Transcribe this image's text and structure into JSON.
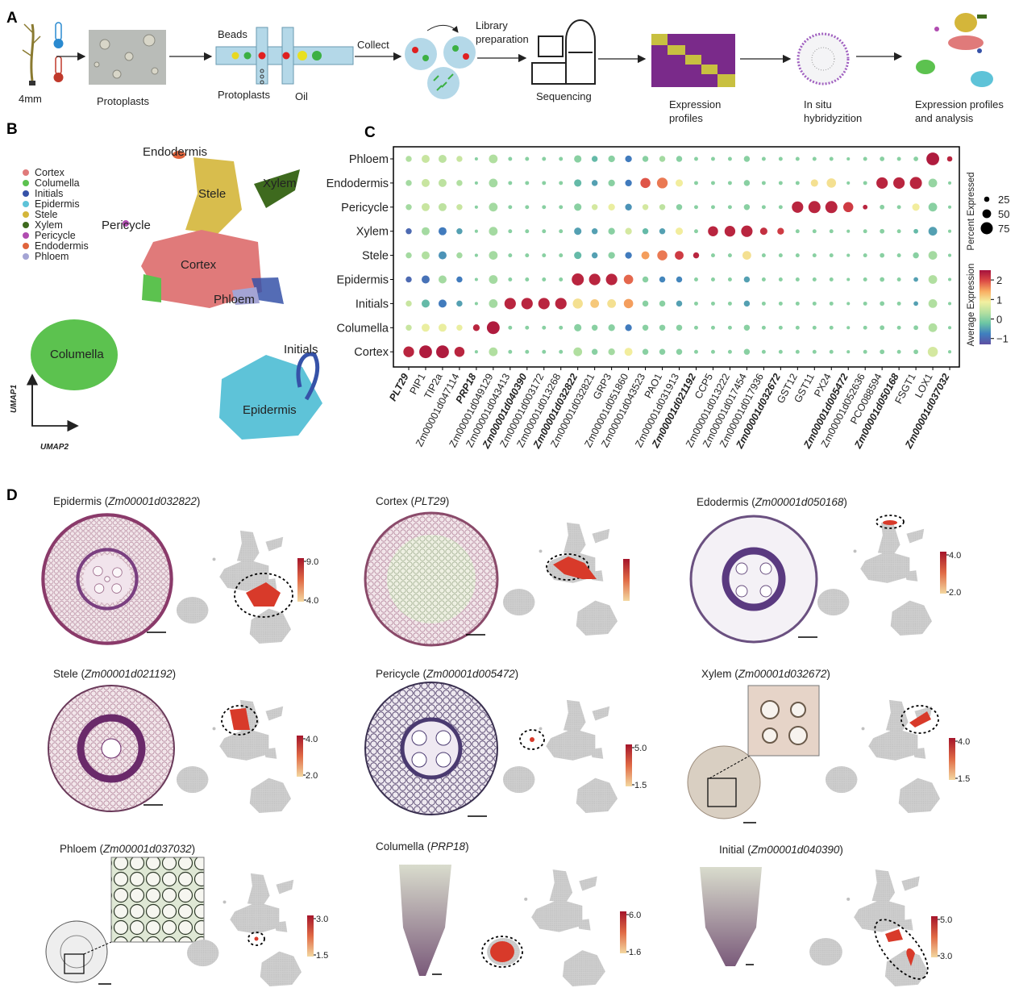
{
  "panel_labels": [
    "A",
    "B",
    "C",
    "D"
  ],
  "workflow": {
    "root_length": "4mm",
    "protoplasts": "Protoplasts",
    "beads": "Beads",
    "protoplasts_in": "Protoplasts",
    "oil": "Oil",
    "collect": "Collect",
    "library": [
      "Library",
      "preparation"
    ],
    "sequencing": "Sequencing",
    "expression": [
      "Expression",
      "profiles"
    ],
    "in_situ": [
      "In situ",
      "hybridyzition"
    ],
    "analysis": [
      "Expression profiles",
      "and analysis"
    ]
  },
  "umap": {
    "legend": [
      {
        "name": "Cortex",
        "color": "#e07a7a"
      },
      {
        "name": "Columella",
        "color": "#5cc24f"
      },
      {
        "name": "Initials",
        "color": "#3652a8"
      },
      {
        "name": "Epidermis",
        "color": "#5ec3d8"
      },
      {
        "name": "Stele",
        "color": "#d4b63a"
      },
      {
        "name": "Xylem",
        "color": "#3e6a1e"
      },
      {
        "name": "Pericycle",
        "color": "#b04cb0"
      },
      {
        "name": "Endodermis",
        "color": "#e0643c"
      },
      {
        "name": "Phloem",
        "color": "#a4a4d4"
      }
    ],
    "y_axis": "UMAP1",
    "x_axis": "UMAP2"
  },
  "chart_data": {
    "type": "dotplot",
    "rows": [
      "Phloem",
      "Endodermis",
      "Pericycle",
      "Xylem",
      "Stele",
      "Epidermis",
      "Initials",
      "Columella",
      "Cortex"
    ],
    "genes": [
      "PLT29",
      "PIP1",
      "TIP2a",
      "Zm00001d047114",
      "PRP18",
      "Zm00001d049129",
      "Zm00001d043413",
      "Zm00001d040390",
      "Zm00001d003172",
      "Zm00001d013268",
      "Zm00001d032822",
      "Zm00001d032821",
      "GRP3",
      "Zm00001d051860",
      "Zm00001d043523",
      "PAO1",
      "Zm00001d031913",
      "Zm00001d021192",
      "CCP5",
      "Zm00001d013222",
      "Zm00001d017454",
      "Zm00001d017936",
      "Zm00001d032672",
      "GST12",
      "GST11",
      "PX24",
      "Zm00001d005472",
      "Zm00001d052636",
      "PCO088594",
      "Zm00001d050168",
      "FSGT1",
      "LOX1",
      "Zm00001d037032"
    ],
    "bold": [
      true,
      false,
      false,
      false,
      true,
      false,
      false,
      true,
      false,
      false,
      true,
      false,
      false,
      false,
      false,
      false,
      false,
      true,
      false,
      false,
      false,
      false,
      true,
      false,
      false,
      false,
      true,
      false,
      false,
      true,
      false,
      false,
      true
    ],
    "expression": [
      [
        0.3,
        0.5,
        0.4,
        0.5,
        0,
        0.3,
        0,
        0,
        0,
        0,
        0,
        -0.3,
        0,
        -0.8,
        0,
        0.2,
        0,
        0,
        0,
        0,
        0,
        0,
        0,
        0,
        0,
        0,
        0,
        0,
        0,
        0,
        0,
        2.4,
        2.3
      ],
      [
        0.2,
        0.5,
        0.4,
        0.3,
        0,
        0.2,
        0,
        0,
        0,
        0,
        -0.3,
        -0.5,
        0,
        -0.8,
        1.9,
        1.7,
        0.9,
        0,
        0,
        0,
        0,
        0,
        0,
        0,
        1,
        1,
        0,
        0,
        2.3,
        2.3,
        2.3,
        0.1,
        0
      ],
      [
        0.2,
        0.5,
        0.4,
        0.5,
        0,
        0.2,
        0,
        0,
        0,
        0,
        0,
        0.6,
        0.8,
        -0.6,
        0.6,
        0.4,
        0,
        0,
        0,
        0,
        0,
        0,
        0,
        2.3,
        2.3,
        2.3,
        2.1,
        2.3,
        0,
        0,
        0.9,
        0,
        0
      ],
      [
        -1,
        0.2,
        -0.8,
        -0.5,
        0,
        0.2,
        0,
        0,
        0,
        0,
        -0.5,
        -0.5,
        0,
        0.6,
        -0.3,
        -0.5,
        0.9,
        0,
        2.3,
        2.3,
        2.3,
        2.2,
        2.1,
        0,
        0,
        0,
        0,
        0,
        0,
        0,
        -0.3,
        -0.5,
        0
      ],
      [
        0.2,
        0.3,
        -0.6,
        0.2,
        0,
        0.2,
        0,
        0,
        0,
        0,
        -0.3,
        -0.5,
        0,
        -0.8,
        1.5,
        1.7,
        2.1,
        2.3,
        0,
        0,
        1,
        0,
        0,
        0,
        0,
        0,
        0,
        0,
        0,
        0,
        0,
        0.2,
        0
      ],
      [
        -1,
        -0.9,
        0.2,
        -0.8,
        0,
        0.2,
        0,
        0,
        0,
        0,
        2.3,
        2.3,
        2.3,
        1.8,
        0,
        -0.7,
        -0.7,
        0,
        0,
        0,
        -0.5,
        0,
        0,
        0,
        0,
        0,
        0,
        0,
        0,
        0,
        -0.5,
        0.3,
        0
      ],
      [
        0.5,
        -0.3,
        -0.8,
        -0.5,
        0,
        0.2,
        2.3,
        2.3,
        2.3,
        2.3,
        1,
        1.2,
        1,
        1.5,
        0,
        0,
        -0.5,
        0,
        0,
        0,
        -0.5,
        0,
        0,
        0,
        0,
        0,
        0,
        0,
        0,
        0,
        -0.5,
        0.3,
        0
      ],
      [
        0.5,
        0.8,
        0.8,
        0.8,
        2.3,
        2.4,
        0,
        0,
        0,
        0,
        0,
        0,
        0,
        -0.8,
        0,
        0,
        0,
        0,
        0,
        0,
        0,
        0,
        0,
        0,
        0,
        0,
        0,
        0,
        0,
        0,
        0,
        0.3,
        0
      ],
      [
        2.3,
        2.4,
        2.4,
        2.3,
        0,
        0.3,
        0,
        0,
        0,
        0,
        0.3,
        0,
        0.2,
        0.9,
        0,
        0,
        0,
        0,
        0,
        0,
        0,
        0,
        0,
        0,
        0,
        0,
        0,
        0,
        0,
        0,
        0,
        0.6,
        0
      ]
    ],
    "percent": [
      [
        30,
        45,
        45,
        30,
        10,
        50,
        15,
        15,
        15,
        15,
        40,
        30,
        35,
        35,
        30,
        30,
        30,
        15,
        15,
        15,
        30,
        15,
        15,
        15,
        15,
        15,
        10,
        15,
        20,
        15,
        20,
        80,
        25
      ],
      [
        30,
        45,
        45,
        30,
        10,
        50,
        15,
        15,
        15,
        15,
        40,
        30,
        35,
        35,
        60,
        65,
        40,
        15,
        15,
        15,
        30,
        15,
        15,
        15,
        40,
        55,
        10,
        15,
        70,
        70,
        75,
        50,
        10
      ],
      [
        30,
        45,
        45,
        30,
        10,
        50,
        15,
        15,
        15,
        15,
        40,
        30,
        35,
        35,
        30,
        30,
        30,
        15,
        15,
        15,
        30,
        15,
        15,
        70,
        75,
        75,
        60,
        20,
        20,
        15,
        40,
        50,
        10
      ],
      [
        30,
        45,
        45,
        30,
        10,
        50,
        15,
        15,
        15,
        15,
        40,
        30,
        35,
        35,
        30,
        30,
        40,
        15,
        60,
        65,
        70,
        40,
        35,
        15,
        15,
        15,
        10,
        15,
        20,
        15,
        20,
        50,
        10
      ],
      [
        30,
        45,
        45,
        30,
        10,
        50,
        15,
        15,
        15,
        15,
        40,
        30,
        35,
        35,
        45,
        60,
        50,
        30,
        15,
        15,
        50,
        15,
        15,
        15,
        15,
        15,
        10,
        15,
        20,
        15,
        30,
        50,
        10
      ],
      [
        30,
        45,
        45,
        30,
        10,
        50,
        15,
        15,
        15,
        15,
        75,
        70,
        70,
        55,
        30,
        30,
        30,
        15,
        15,
        15,
        30,
        15,
        15,
        15,
        15,
        15,
        10,
        15,
        20,
        15,
        20,
        50,
        10
      ],
      [
        30,
        45,
        45,
        30,
        10,
        50,
        70,
        70,
        70,
        70,
        60,
        50,
        50,
        55,
        30,
        30,
        30,
        15,
        15,
        15,
        30,
        15,
        15,
        15,
        15,
        15,
        10,
        15,
        20,
        15,
        20,
        50,
        10
      ],
      [
        30,
        45,
        45,
        30,
        35,
        80,
        15,
        15,
        15,
        15,
        40,
        30,
        35,
        35,
        30,
        30,
        30,
        15,
        15,
        15,
        30,
        15,
        15,
        15,
        15,
        15,
        10,
        15,
        20,
        15,
        20,
        50,
        10
      ],
      [
        65,
        80,
        80,
        60,
        10,
        50,
        15,
        15,
        15,
        15,
        50,
        30,
        35,
        45,
        30,
        30,
        30,
        15,
        15,
        15,
        30,
        15,
        15,
        15,
        15,
        15,
        10,
        15,
        20,
        15,
        20,
        60,
        10
      ]
    ],
    "size_legend_title": "Percent Expressed",
    "size_ticks": [
      25,
      50,
      75
    ],
    "color_legend_title": "Average Expression",
    "colorlim": [
      -1.3,
      2.5
    ],
    "color_ticks": [
      2,
      1,
      0,
      {
        "value": -1,
        "label": "−1"
      }
    ],
    "colormap": [
      "#5e4fa2",
      "#3f7fbf",
      "#6cc5a4",
      "#b5e0a0",
      "#f2f0a0",
      "#f9ae62",
      "#dc4a45",
      "#a5103c"
    ]
  },
  "in_situ_panels": [
    {
      "prefix": "Epidermis (",
      "gene": "Zm00001d032822",
      "suffix": ")",
      "scale": [
        {
          "value": 9,
          "label": "9.0"
        },
        {
          "value": 4,
          "label": "4.0"
        }
      ]
    },
    {
      "prefix": "Cortex (",
      "gene": "PLT29",
      "suffix": ")",
      "scale": []
    },
    {
      "prefix": "Edodermis (",
      "gene": "Zm00001d050168",
      "suffix": ")",
      "scale": [
        {
          "value": 4,
          "label": "4.0"
        },
        {
          "value": 2,
          "label": "2.0"
        }
      ]
    },
    {
      "prefix": "Stele (",
      "gene": "Zm00001d021192",
      "suffix": ")",
      "scale": [
        {
          "value": 4,
          "label": "4.0"
        },
        {
          "value": 2,
          "label": "2.0"
        }
      ]
    },
    {
      "prefix": "Pericycle (",
      "gene": "Zm00001d005472",
      "suffix": ")",
      "scale": [
        {
          "value": 5,
          "label": "5.0"
        },
        {
          "value": 1.5,
          "label": "1.5"
        }
      ]
    },
    {
      "prefix": "Xylem (",
      "gene": "Zm00001d032672",
      "suffix": ")",
      "scale": [
        {
          "value": 4,
          "label": "4.0"
        },
        {
          "value": 1.5,
          "label": "1.5"
        }
      ]
    },
    {
      "prefix": "Phloem (",
      "gene": "Zm00001d037032",
      "suffix": ")",
      "scale": [
        {
          "value": 3,
          "label": "3.0"
        },
        {
          "value": 1.5,
          "label": "1.5"
        }
      ]
    },
    {
      "prefix": "Columella (",
      "gene": "PRP18",
      "suffix": ")",
      "scale": [
        {
          "value": 6,
          "label": "6.0"
        },
        {
          "value": 1.6,
          "label": "1.6"
        }
      ]
    },
    {
      "prefix": "Initial (",
      "gene": "Zm00001d040390",
      "suffix": ")",
      "scale": [
        {
          "value": 5,
          "label": "5.0"
        },
        {
          "value": 3,
          "label": "3.0"
        }
      ]
    }
  ]
}
